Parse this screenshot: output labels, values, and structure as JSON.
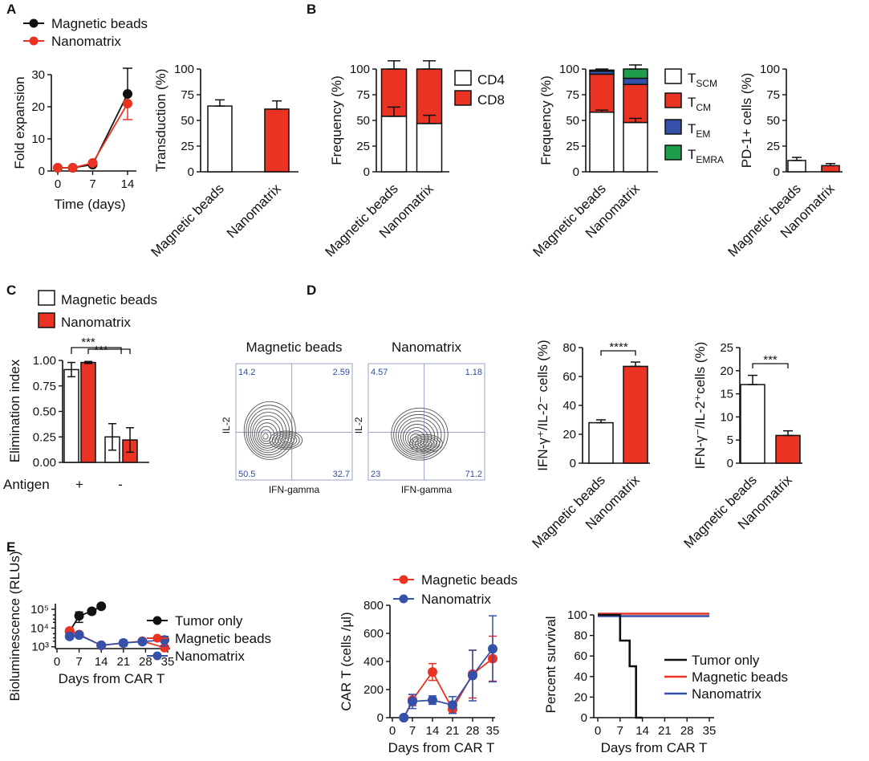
{
  "colors": {
    "black": "#111111",
    "red": "#ea3323",
    "blue": "#3550a8",
    "green": "#1e9e4a",
    "white": "#ffffff",
    "flow_text": "#2f4e9f"
  },
  "chart_data": [
    {
      "id": "A1",
      "panel_label": "A",
      "type": "line",
      "xlabel": "Time (days)",
      "ylabel": "Fold expansion",
      "xlim": [
        0,
        14
      ],
      "ylim": [
        0,
        30
      ],
      "xticks": [
        "0",
        "7",
        "14"
      ],
      "yticks": [
        "0",
        "10",
        "20",
        "30"
      ],
      "legend": [
        "Magnetic beads",
        "Nanomatrix"
      ],
      "series": [
        {
          "name": "Magnetic beads",
          "x": [
            0,
            3,
            7,
            14
          ],
          "y": [
            1,
            1,
            2,
            24
          ],
          "err": [
            0,
            0,
            0,
            8
          ]
        },
        {
          "name": "Nanomatrix",
          "x": [
            0,
            3,
            7,
            14
          ],
          "y": [
            1,
            1,
            2.5,
            21
          ],
          "err": [
            0,
            0,
            0,
            5
          ]
        }
      ]
    },
    {
      "id": "A2",
      "type": "bar",
      "ylabel": "Transduction (%)",
      "ylim": [
        0,
        100
      ],
      "yticks": [
        "0",
        "25",
        "50",
        "75",
        "100"
      ],
      "categories": [
        "Magnetic beads",
        "Nanomatrix"
      ],
      "values": [
        64,
        61
      ],
      "err": [
        6,
        8
      ]
    },
    {
      "id": "B1",
      "panel_label": "B",
      "type": "stacked-bar",
      "ylabel": "Frequency (%)",
      "ylim": [
        0,
        100
      ],
      "yticks": [
        "0",
        "25",
        "50",
        "75",
        "100"
      ],
      "categories": [
        "Magnetic beads",
        "Nanomatrix"
      ],
      "series": [
        {
          "name": "CD4",
          "values": [
            54,
            47
          ],
          "err": [
            9,
            8
          ]
        },
        {
          "name": "CD8",
          "values": [
            46,
            53
          ],
          "err": [
            8,
            8
          ]
        }
      ]
    },
    {
      "id": "B2",
      "type": "stacked-bar",
      "ylabel": "Frequency (%)",
      "ylim": [
        0,
        100
      ],
      "yticks": [
        "0",
        "25",
        "50",
        "75",
        "100"
      ],
      "categories": [
        "Magnetic beads",
        "Nanomatrix"
      ],
      "series": [
        {
          "name": "TSCM",
          "values": [
            58,
            48
          ],
          "err": [
            2,
            4
          ]
        },
        {
          "name": "TCM",
          "values": [
            37,
            37
          ],
          "err": [
            0,
            0
          ]
        },
        {
          "name": "TEM",
          "values": [
            3,
            6
          ],
          "err": [
            0,
            0
          ]
        },
        {
          "name": "TEMRA",
          "values": [
            1,
            9
          ],
          "err": [
            1,
            4
          ]
        }
      ]
    },
    {
      "id": "B3",
      "type": "bar",
      "ylabel": "PD-1+ cells (%)",
      "ylim": [
        0,
        100
      ],
      "yticks": [
        "0",
        "25",
        "50",
        "75",
        "100"
      ],
      "categories": [
        "Magnetic beads",
        "Nanomatrix"
      ],
      "values": [
        11,
        6
      ],
      "err": [
        3,
        2
      ]
    },
    {
      "id": "C",
      "panel_label": "C",
      "type": "bar",
      "ylabel": "Elimination index",
      "ylim": [
        0,
        1.0
      ],
      "yticks": [
        "0.00",
        "0.25",
        "0.50",
        "0.75",
        "1.00"
      ],
      "legend": [
        "Magnetic beads",
        "Nanomatrix"
      ],
      "row_label": "Antigen",
      "groups": [
        "+",
        "-"
      ],
      "series": [
        {
          "name": "Magnetic beads",
          "values": [
            0.91,
            0.25
          ],
          "err": [
            0.07,
            0.13
          ]
        },
        {
          "name": "Nanomatrix",
          "values": [
            0.98,
            0.22
          ],
          "err": [
            0.01,
            0.12
          ]
        }
      ],
      "annotations": [
        "***",
        "***"
      ]
    },
    {
      "id": "D1",
      "panel_label": "D",
      "type": "contour",
      "title": "Magnetic beads",
      "xlabel": "IFN-gamma",
      "ylabel": "IL-2",
      "quadrants": [
        "14.2",
        "2.59",
        "50.5",
        "32.7"
      ]
    },
    {
      "id": "D2",
      "type": "contour",
      "title": "Nanomatrix",
      "xlabel": "IFN-gamma",
      "ylabel": "IL-2",
      "quadrants": [
        "4.57",
        "1.18",
        "23",
        "71.2"
      ]
    },
    {
      "id": "D3",
      "type": "bar",
      "ylabel": "IFN-γ⁺/IL-2⁻ cells (%)",
      "ylim": [
        0,
        80
      ],
      "yticks": [
        "0",
        "20",
        "40",
        "60",
        "80"
      ],
      "categories": [
        "Magnetic beads",
        "Nanomatrix"
      ],
      "values": [
        28,
        67
      ],
      "err": [
        2,
        3
      ],
      "annotation": "****"
    },
    {
      "id": "D4",
      "type": "bar",
      "ylabel": "IFN-γ⁻/IL-2⁺cells (%)",
      "ylim": [
        0,
        25
      ],
      "yticks": [
        "0",
        "5",
        "10",
        "15",
        "20",
        "25"
      ],
      "categories": [
        "Magnetic beads",
        "Nanomatrix"
      ],
      "values": [
        17,
        6
      ],
      "err": [
        2,
        1
      ],
      "annotation": "***"
    },
    {
      "id": "E1",
      "panel_label": "E",
      "type": "line",
      "xlabel": "Days from CAR T",
      "ylabel": "Bioluminescence (RLUs)",
      "yscale": "log",
      "ylim": [
        800,
        200000
      ],
      "xlim": [
        0,
        35
      ],
      "xticks": [
        "0",
        "7",
        "14",
        "21",
        "28",
        "35"
      ],
      "yticks": [
        "10³",
        "10⁴",
        "10⁵"
      ],
      "legend": [
        "Tumor only",
        "Magnetic beads",
        "Nanomatrix"
      ],
      "series": [
        {
          "name": "Tumor only",
          "x": [
            4,
            7,
            11,
            14
          ],
          "y": [
            6500,
            45000,
            78000,
            145000
          ],
          "lo": [
            4500,
            20000,
            55000,
            145000
          ],
          "hi": [
            9500,
            72000,
            100000,
            145000
          ]
        },
        {
          "name": "Magnetic beads",
          "x": [
            4,
            7,
            14,
            21,
            27,
            34
          ],
          "y": [
            7000,
            4500,
            1200,
            1600,
            2000,
            900
          ],
          "lo": [
            5500,
            3700,
            1200,
            1200,
            1600,
            900
          ],
          "hi": [
            9000,
            5500,
            1200,
            2200,
            2600,
            900
          ]
        },
        {
          "name": "Nanomatrix",
          "x": [
            4,
            7,
            14,
            21,
            27,
            34
          ],
          "y": [
            3600,
            4200,
            1200,
            1600,
            1900,
            2300
          ],
          "lo": [
            2700,
            3300,
            1200,
            1100,
            1400,
            1100
          ],
          "hi": [
            4800,
            5300,
            1200,
            2300,
            2500,
            3600
          ]
        }
      ]
    },
    {
      "id": "E2",
      "type": "line",
      "xlabel": "Days from CAR T",
      "ylabel": "CAR T (cells /µl)",
      "xlim": [
        0,
        35
      ],
      "ylim": [
        0,
        800
      ],
      "xticks": [
        "0",
        "7",
        "14",
        "21",
        "28",
        "35"
      ],
      "yticks": [
        "0",
        "200",
        "400",
        "600",
        "800"
      ],
      "legend": [
        "Magnetic beads",
        "Nanomatrix"
      ],
      "series": [
        {
          "name": "Magnetic beads",
          "x": [
            4,
            7,
            14,
            21,
            28,
            35
          ],
          "y": [
            0,
            125,
            325,
            60,
            310,
            420
          ],
          "err": [
            0,
            40,
            60,
            30,
            170,
            160
          ]
        },
        {
          "name": "Nanomatrix",
          "x": [
            4,
            7,
            14,
            21,
            28,
            35
          ],
          "y": [
            0,
            115,
            125,
            90,
            300,
            490
          ],
          "err": [
            0,
            50,
            30,
            60,
            180,
            235
          ]
        }
      ]
    },
    {
      "id": "E3",
      "type": "line",
      "xlabel": "Days from CAR T",
      "ylabel": "Percent survival",
      "xlim": [
        0,
        35
      ],
      "ylim": [
        0,
        100
      ],
      "xticks": [
        "0",
        "7",
        "14",
        "21",
        "28",
        "35"
      ],
      "yticks": [
        "0",
        "20",
        "40",
        "60",
        "80",
        "100"
      ],
      "legend": [
        "Tumor only",
        "Magnetic beads",
        "Nanomatrix"
      ],
      "series": [
        {
          "name": "Tumor only",
          "x": [
            0,
            7,
            7,
            10,
            10,
            12,
            12,
            14,
            14
          ],
          "y": [
            100,
            100,
            75,
            75,
            50,
            50,
            0,
            0,
            0
          ]
        },
        {
          "name": "Magnetic beads",
          "x": [
            0,
            35
          ],
          "y": [
            100,
            100
          ]
        },
        {
          "name": "Nanomatrix",
          "x": [
            0,
            35
          ],
          "y": [
            100,
            100
          ]
        }
      ]
    }
  ]
}
